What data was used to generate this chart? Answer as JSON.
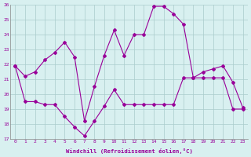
{
  "xlabel": "Windchill (Refroidissement éolien,°C)",
  "x": [
    0,
    1,
    2,
    3,
    4,
    5,
    6,
    7,
    8,
    9,
    10,
    11,
    12,
    13,
    14,
    15,
    16,
    17,
    18,
    19,
    20,
    21,
    22,
    23
  ],
  "line1": [
    21.9,
    21.2,
    21.5,
    22.3,
    22.8,
    23.5,
    22.5,
    18.2,
    20.5,
    22.6,
    24.3,
    22.6,
    24.0,
    24.0,
    25.9,
    25.9,
    25.4,
    24.7,
    21.1,
    21.5,
    21.7,
    21.9,
    20.8,
    19.1
  ],
  "line2": [
    21.9,
    19.5,
    19.5,
    19.3,
    19.3,
    18.5,
    17.8,
    17.2,
    18.2,
    19.2,
    20.3,
    19.3,
    19.3,
    19.3,
    19.3,
    19.3,
    19.3,
    21.1,
    21.1,
    21.1,
    21.1,
    21.1,
    19.0,
    19.0
  ],
  "ylim": [
    17,
    26
  ],
  "xlim": [
    -0.5,
    23.5
  ],
  "yticks": [
    17,
    18,
    19,
    20,
    21,
    22,
    23,
    24,
    25,
    26
  ],
  "xticks": [
    0,
    1,
    2,
    3,
    4,
    5,
    6,
    7,
    8,
    9,
    10,
    11,
    12,
    13,
    14,
    15,
    16,
    17,
    18,
    19,
    20,
    21,
    22,
    23
  ],
  "line_color": "#990099",
  "bg_color": "#d8f0f0",
  "grid_color": "#aacccc",
  "font_color": "#990099",
  "font_family": "monospace"
}
